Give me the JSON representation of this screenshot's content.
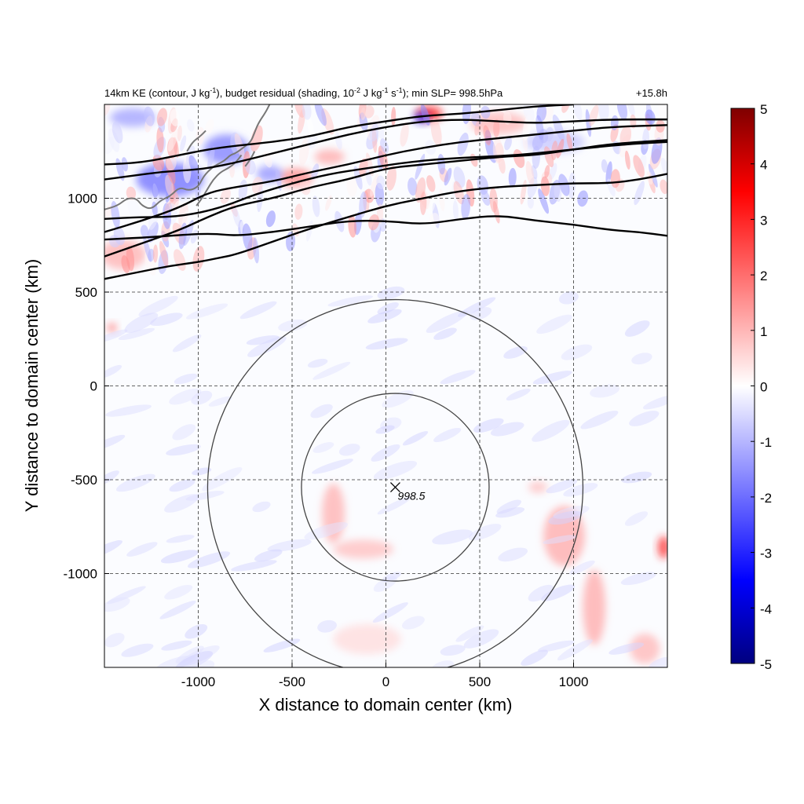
{
  "chart_data": {
    "type": "heatmap",
    "title_left_segments": [
      {
        "text": "14km KE (contour, J kg",
        "sup": false
      },
      {
        "text": "-1",
        "sup": true
      },
      {
        "text": "), budget residual (shading, 10",
        "sup": false
      },
      {
        "text": "-2",
        "sup": true
      },
      {
        "text": " J kg",
        "sup": false
      },
      {
        "text": "-1",
        "sup": true
      },
      {
        "text": " s",
        "sup": false
      },
      {
        "text": "-1",
        "sup": true
      },
      {
        "text": "); min SLP= 998.5hPa",
        "sup": false
      }
    ],
    "title_right": "+15.8h",
    "xlabel": "X distance to domain center (km)",
    "ylabel": "Y distance to domain center (km)",
    "xlim": [
      -1500,
      1500
    ],
    "ylim": [
      -1500,
      1500
    ],
    "x_ticks": [
      -1000,
      -500,
      0,
      500,
      1000
    ],
    "x_tick_labels": [
      "-1000",
      "-500",
      "0",
      "500",
      "1000"
    ],
    "y_ticks": [
      1000,
      500,
      0,
      -500,
      -1000
    ],
    "y_tick_labels": [
      "1000",
      "500",
      "0",
      "-500",
      "-1000"
    ],
    "grid": true,
    "colorbar": {
      "min": -5,
      "max": 5,
      "ticks": [
        "5",
        "4",
        "3",
        "2",
        "1",
        "0",
        "-1",
        "-2",
        "-3",
        "-4",
        "-5"
      ],
      "colors": [
        "#7f0000",
        "#ff0000",
        "#ffffff",
        "#0000ff",
        "#00007f"
      ]
    },
    "storm_center": {
      "x": 50,
      "y": -540,
      "label": "998.5"
    },
    "range_circles_radius_km": [
      500,
      1000
    ],
    "ke_contours": [
      [
        [
          -1500,
          570
        ],
        [
          -1300,
          610
        ],
        [
          -1150,
          640
        ],
        [
          -1000,
          660
        ],
        [
          -900,
          680
        ],
        [
          -800,
          700
        ],
        [
          -600,
          770
        ],
        [
          -400,
          840
        ],
        [
          -200,
          900
        ],
        [
          0,
          960
        ],
        [
          200,
          1000
        ],
        [
          400,
          1040
        ],
        [
          600,
          1060
        ],
        [
          800,
          1070
        ],
        [
          1000,
          1080
        ],
        [
          1200,
          1080
        ],
        [
          1350,
          1100
        ],
        [
          1500,
          1130
        ]
      ],
      [
        [
          -1500,
          690
        ],
        [
          -1300,
          760
        ],
        [
          -1100,
          830
        ],
        [
          -950,
          900
        ],
        [
          -800,
          960
        ],
        [
          -600,
          1000
        ],
        [
          -400,
          1060
        ],
        [
          -200,
          1100
        ],
        [
          0,
          1160
        ],
        [
          200,
          1180
        ],
        [
          400,
          1200
        ],
        [
          600,
          1220
        ],
        [
          800,
          1230
        ],
        [
          1000,
          1260
        ],
        [
          1200,
          1290
        ],
        [
          1500,
          1310
        ]
      ],
      [
        [
          -1500,
          820
        ],
        [
          -1300,
          880
        ],
        [
          -1100,
          950
        ],
        [
          -950,
          1030
        ],
        [
          -800,
          1060
        ],
        [
          -600,
          1090
        ],
        [
          -400,
          1140
        ],
        [
          -200,
          1180
        ],
        [
          0,
          1230
        ],
        [
          200,
          1270
        ],
        [
          400,
          1300
        ],
        [
          600,
          1320
        ],
        [
          800,
          1340
        ],
        [
          1000,
          1360
        ],
        [
          1200,
          1380
        ],
        [
          1500,
          1390
        ]
      ],
      [
        [
          -1500,
          1180
        ],
        [
          -1300,
          1190
        ],
        [
          -1100,
          1230
        ],
        [
          -950,
          1260
        ],
        [
          -800,
          1280
        ],
        [
          -600,
          1300
        ],
        [
          -400,
          1330
        ],
        [
          -200,
          1380
        ],
        [
          0,
          1410
        ],
        [
          200,
          1440
        ],
        [
          400,
          1450
        ],
        [
          600,
          1470
        ],
        [
          800,
          1490
        ],
        [
          1000,
          1500
        ]
      ],
      [
        [
          -1500,
          1100
        ],
        [
          -1350,
          1120
        ],
        [
          -1200,
          1140
        ],
        [
          -1050,
          1150
        ],
        [
          -950,
          1160
        ],
        [
          -800,
          1190
        ],
        [
          -600,
          1240
        ],
        [
          -400,
          1290
        ],
        [
          -200,
          1340
        ],
        [
          0,
          1380
        ],
        [
          200,
          1410
        ],
        [
          400,
          1420
        ],
        [
          600,
          1410
        ],
        [
          800,
          1400
        ],
        [
          1000,
          1410
        ],
        [
          1200,
          1420
        ],
        [
          1500,
          1420
        ]
      ],
      [
        [
          -1500,
          890
        ],
        [
          -1300,
          900
        ],
        [
          -1150,
          900
        ],
        [
          -1000,
          920
        ],
        [
          -850,
          960
        ],
        [
          -700,
          1020
        ],
        [
          -500,
          1080
        ],
        [
          -300,
          1130
        ],
        [
          -100,
          1160
        ],
        [
          100,
          1190
        ],
        [
          300,
          1210
        ],
        [
          500,
          1220
        ],
        [
          700,
          1230
        ],
        [
          900,
          1250
        ],
        [
          1100,
          1270
        ],
        [
          1300,
          1290
        ],
        [
          1500,
          1300
        ]
      ],
      [
        [
          -1500,
          780
        ],
        [
          -1300,
          790
        ],
        [
          -1150,
          800
        ],
        [
          -1000,
          810
        ],
        [
          -900,
          810
        ],
        [
          -800,
          800
        ],
        [
          -600,
          820
        ],
        [
          -400,
          850
        ],
        [
          -200,
          880
        ],
        [
          0,
          880
        ],
        [
          200,
          860
        ],
        [
          400,
          890
        ],
        [
          600,
          910
        ],
        [
          800,
          880
        ],
        [
          1000,
          860
        ],
        [
          1200,
          830
        ],
        [
          1350,
          820
        ],
        [
          1500,
          800
        ]
      ]
    ],
    "residual_blobs": [
      {
        "x": -1150,
        "y": 1100,
        "rx": 180,
        "ry": 90,
        "v": -2.0
      },
      {
        "x": -850,
        "y": 1260,
        "rx": 120,
        "ry": 80,
        "v": -1.8
      },
      {
        "x": -1350,
        "y": 1430,
        "rx": 120,
        "ry": 50,
        "v": -1.3
      },
      {
        "x": 230,
        "y": 1450,
        "rx": 70,
        "ry": 40,
        "v": 3.2
      },
      {
        "x": 190,
        "y": 1430,
        "rx": 40,
        "ry": 30,
        "v": -3.0
      },
      {
        "x": -480,
        "y": 1110,
        "rx": 90,
        "ry": 50,
        "v": 1.6
      },
      {
        "x": -620,
        "y": 1130,
        "rx": 70,
        "ry": 45,
        "v": -1.5
      },
      {
        "x": -300,
        "y": 1220,
        "rx": 80,
        "ry": 40,
        "v": 1.2
      },
      {
        "x": 600,
        "y": 1400,
        "rx": 150,
        "ry": 60,
        "v": 1.0
      },
      {
        "x": 900,
        "y": 1300,
        "rx": 160,
        "ry": 60,
        "v": -0.8
      },
      {
        "x": -1400,
        "y": 700,
        "rx": 120,
        "ry": 80,
        "v": 1.1
      },
      {
        "x": -1460,
        "y": 310,
        "rx": 25,
        "ry": 25,
        "v": 1.8
      },
      {
        "x": -280,
        "y": -680,
        "rx": 60,
        "ry": 160,
        "v": 1.1
      },
      {
        "x": -120,
        "y": -870,
        "rx": 160,
        "ry": 50,
        "v": 0.9
      },
      {
        "x": 950,
        "y": -800,
        "rx": 110,
        "ry": 160,
        "v": 1.2
      },
      {
        "x": 1110,
        "y": -1180,
        "rx": 60,
        "ry": 200,
        "v": 1.2
      },
      {
        "x": 1480,
        "y": -860,
        "rx": 30,
        "ry": 60,
        "v": 3.0
      },
      {
        "x": 1380,
        "y": -1400,
        "rx": 80,
        "ry": 80,
        "v": 1.0
      },
      {
        "x": 810,
        "y": -540,
        "rx": 50,
        "ry": 30,
        "v": 0.9
      },
      {
        "x": -100,
        "y": -1350,
        "rx": 180,
        "ry": 80,
        "v": 0.5
      }
    ],
    "coast_outline": [
      [
        [
          -1500,
          940
        ],
        [
          -1430,
          960
        ],
        [
          -1380,
          1000
        ],
        [
          -1330,
          1000
        ],
        [
          -1300,
          960
        ],
        [
          -1250,
          940
        ],
        [
          -1200,
          990
        ],
        [
          -1150,
          1010
        ],
        [
          -1100,
          1060
        ],
        [
          -1050,
          1040
        ],
        [
          -1000,
          1060
        ],
        [
          -970,
          1120
        ],
        [
          -930,
          1160
        ],
        [
          -900,
          1180
        ],
        [
          -860,
          1200
        ],
        [
          -830,
          1230
        ],
        [
          -800,
          1240
        ],
        [
          -760,
          1270
        ],
        [
          -720,
          1300
        ],
        [
          -700,
          1350
        ],
        [
          -680,
          1400
        ],
        [
          -640,
          1460
        ],
        [
          -620,
          1500
        ]
      ],
      [
        [
          -1010,
          960
        ],
        [
          -980,
          1000
        ],
        [
          -950,
          1050
        ],
        [
          -920,
          1100
        ],
        [
          -880,
          1140
        ],
        [
          -840,
          1160
        ],
        [
          -800,
          1190
        ],
        [
          -770,
          1230
        ]
      ],
      [
        [
          -1060,
          1250
        ],
        [
          -1030,
          1300
        ],
        [
          -990,
          1330
        ],
        [
          -960,
          1360
        ]
      ],
      [
        [
          -750,
          1170
        ],
        [
          -720,
          1210
        ],
        [
          -700,
          1250
        ]
      ]
    ]
  }
}
